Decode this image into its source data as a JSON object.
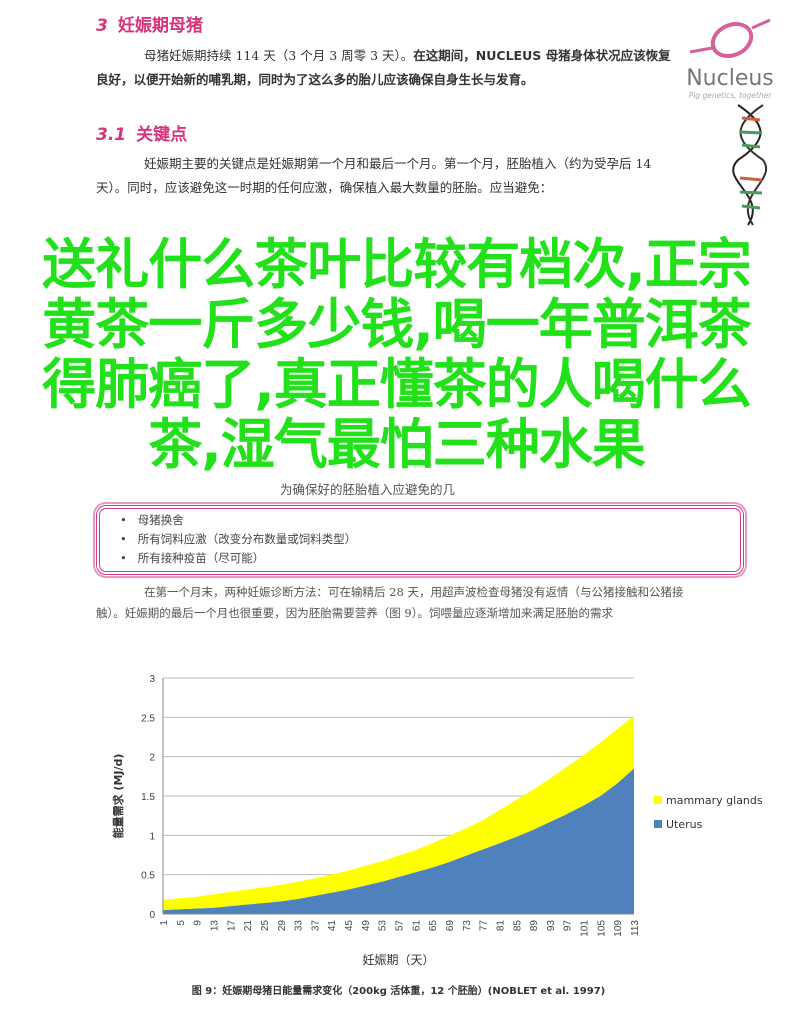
{
  "logo": {
    "name": "Nucleus",
    "tagline": "Pig genetics, together"
  },
  "section3": {
    "number": "3",
    "title": "妊娠期母猪",
    "para_normal": "母猪妊娠期持续 114 天（3 个月 3 周零 3 天）。",
    "para_bold": "在这期间，NUCLEUS 母猪身体状况应该恢复良好，以便开始新的哺乳期，同时为了这么多的胎儿应该确保自身生长与发育。"
  },
  "section31": {
    "number": "3.1",
    "title": "关键点",
    "para": "妊娠期主要的关键点是妊娠期第一个月和最后一个月。第一个月，胚胎植入（约为受孕后 14 天）。同时，应该避免这一时期的任何应激，确保植入最大数量的胚胎。应当避免：",
    "box_intro": "为确保好的胚胎植入应避免的几",
    "bullets": [
      "母猪换舍",
      "所有饲料应激（改变分布数量或饲料类型）",
      "所有接种疫苗（尽可能）"
    ],
    "para2": "在第一个月末，两种妊娠诊断方法：可在输精后 28 天，用超声波检查母猪没有返情（与公猪接触和公猪接触）。妊娠期的最后一个月也很重要，因为胚胎需要营养（图 9）。饲喂量应逐渐增加来满足胚胎的需求"
  },
  "overlay": {
    "lines": [
      "送礼什么茶叶比较有档次,正宗",
      "黄茶一斤多少钱,喝一年普洱茶",
      "得肺癌了,真正懂茶的人喝什么",
      "茶,湿气最怕三种水果"
    ],
    "color": "#22e01a"
  },
  "chart_data": {
    "type": "area",
    "stacked": true,
    "xlabel": "妊娠期（天）",
    "ylabel": "能量需求 (MJ/d)",
    "ylim": [
      0,
      3
    ],
    "yticks": [
      "0",
      "0.5",
      "1",
      "1.5",
      "2",
      "2.5",
      "3"
    ],
    "grid": true,
    "legend_position": "right",
    "x": [
      1,
      5,
      9,
      13,
      17,
      21,
      25,
      29,
      33,
      37,
      41,
      45,
      49,
      53,
      57,
      61,
      65,
      69,
      73,
      77,
      81,
      85,
      89,
      93,
      97,
      101,
      105,
      109,
      113
    ],
    "series": [
      {
        "name": "Uterus",
        "color": "#4f81bd",
        "values": [
          0.05,
          0.06,
          0.07,
          0.08,
          0.1,
          0.12,
          0.14,
          0.16,
          0.19,
          0.23,
          0.27,
          0.31,
          0.36,
          0.41,
          0.47,
          0.53,
          0.59,
          0.66,
          0.74,
          0.82,
          0.9,
          0.98,
          1.07,
          1.17,
          1.27,
          1.38,
          1.5,
          1.66,
          1.85
        ]
      },
      {
        "name": "mammary glands",
        "color": "#ffff00",
        "values": [
          0.13,
          0.14,
          0.15,
          0.17,
          0.18,
          0.19,
          0.2,
          0.21,
          0.22,
          0.22,
          0.23,
          0.24,
          0.25,
          0.26,
          0.27,
          0.28,
          0.31,
          0.33,
          0.35,
          0.37,
          0.42,
          0.47,
          0.51,
          0.55,
          0.6,
          0.64,
          0.68,
          0.69,
          0.67
        ]
      }
    ],
    "caption": "图 9：妊娠期母猪日能量需求变化（200kg 活体重，12 个胚胎）(NOBLET et al. 1997)"
  }
}
